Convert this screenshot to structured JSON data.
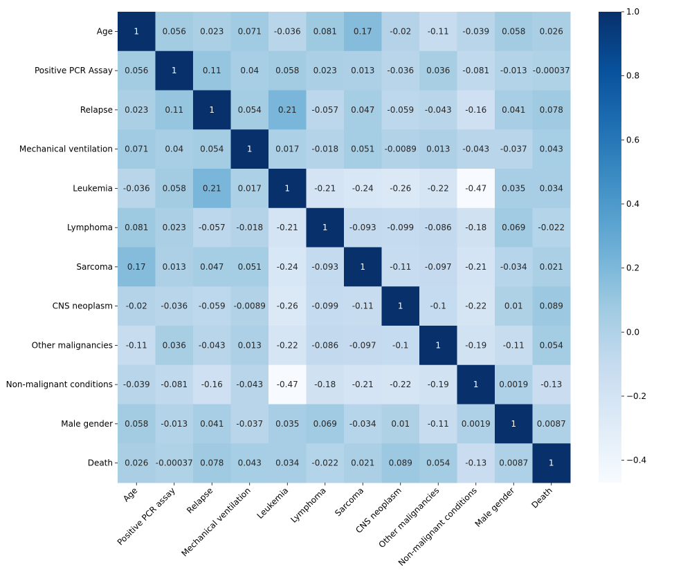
{
  "chart_data": {
    "type": "heatmap",
    "title": "",
    "xlabel": "",
    "ylabel": "",
    "row_labels": [
      "Age",
      "Positive PCR Assay",
      "Relapse",
      "Mechanical ventilation",
      "Leukemia",
      "Lymphoma",
      "Sarcoma",
      "CNS neoplasm",
      "Other malignancies",
      "Non-malignant conditions",
      "Male gender",
      "Death"
    ],
    "col_labels": [
      "Age",
      "Positive PCR assay",
      "Relapse",
      "Mechanical ventilation",
      "Leukemia",
      "Lymphoma",
      "Sarcoma",
      "CNS neoplasm",
      "Other malignancies",
      "Non-malignant conditions",
      "Male gender",
      "Death"
    ],
    "values": [
      [
        "1",
        "0.056",
        "0.023",
        "0.071",
        "-0.036",
        "0.081",
        "0.17",
        "-0.02",
        "-0.11",
        "-0.039",
        "0.058",
        "0.026"
      ],
      [
        "0.056",
        "1",
        "0.11",
        "0.04",
        "0.058",
        "0.023",
        "0.013",
        "-0.036",
        "0.036",
        "-0.081",
        "-0.013",
        "-0.00037"
      ],
      [
        "0.023",
        "0.11",
        "1",
        "0.054",
        "0.21",
        "-0.057",
        "0.047",
        "-0.059",
        "-0.043",
        "-0.16",
        "0.041",
        "0.078"
      ],
      [
        "0.071",
        "0.04",
        "0.054",
        "1",
        "0.017",
        "-0.018",
        "0.051",
        "-0.0089",
        "0.013",
        "-0.043",
        "-0.037",
        "0.043"
      ],
      [
        "-0.036",
        "0.058",
        "0.21",
        "0.017",
        "1",
        "-0.21",
        "-0.24",
        "-0.26",
        "-0.22",
        "-0.47",
        "0.035",
        "0.034"
      ],
      [
        "0.081",
        "0.023",
        "-0.057",
        "-0.018",
        "-0.21",
        "1",
        "-0.093",
        "-0.099",
        "-0.086",
        "-0.18",
        "0.069",
        "-0.022"
      ],
      [
        "0.17",
        "0.013",
        "0.047",
        "0.051",
        "-0.24",
        "-0.093",
        "1",
        "-0.11",
        "-0.097",
        "-0.21",
        "-0.034",
        "0.021"
      ],
      [
        "-0.02",
        "-0.036",
        "-0.059",
        "-0.0089",
        "-0.26",
        "-0.099",
        "-0.11",
        "1",
        "-0.1",
        "-0.22",
        "0.01",
        "0.089"
      ],
      [
        "-0.11",
        "0.036",
        "-0.043",
        "0.013",
        "-0.22",
        "-0.086",
        "-0.097",
        "-0.1",
        "1",
        "-0.19",
        "-0.11",
        "0.054"
      ],
      [
        "-0.039",
        "-0.081",
        "-0.16",
        "-0.043",
        "-0.47",
        "-0.18",
        "-0.21",
        "-0.22",
        "-0.19",
        "1",
        "0.0019",
        "-0.13"
      ],
      [
        "0.058",
        "-0.013",
        "0.041",
        "-0.037",
        "0.035",
        "0.069",
        "-0.034",
        "0.01",
        "-0.11",
        "0.0019",
        "1",
        "0.0087"
      ],
      [
        "0.026",
        "-0.00037",
        "0.078",
        "0.043",
        "0.034",
        "-0.022",
        "0.021",
        "0.089",
        "0.054",
        "-0.13",
        "0.0087",
        "1"
      ]
    ],
    "colormap": "Blues",
    "vmin": -0.47,
    "vmax": 1.0,
    "colorbar": {
      "ticks": [
        1.0,
        0.8,
        0.6,
        0.4,
        0.2,
        0.0,
        -0.2,
        -0.4
      ],
      "tick_labels": [
        "1.0",
        "0.8",
        "0.6",
        "0.4",
        "0.2",
        "0.0",
        "−0.2",
        "−0.4"
      ],
      "placement": "right"
    },
    "annotated": true,
    "grid": false
  }
}
